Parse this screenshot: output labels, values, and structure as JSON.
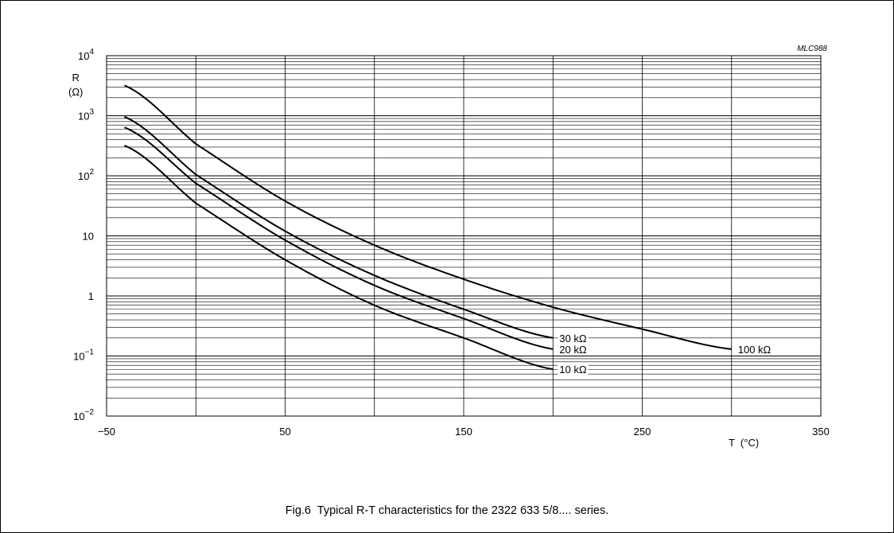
{
  "figure_id": "MLC988",
  "caption": "Fig.6  Typical R-T characteristics for the 2322 633 5/8.... series.",
  "chart_data": {
    "type": "line",
    "title": "",
    "xlabel": "T  (°C)",
    "ylabel": "R (Ω)",
    "xlim": [
      -50,
      350
    ],
    "ylim": [
      0.01,
      10000
    ],
    "yscale": "log",
    "grid": true,
    "x_ticks": [
      "−50",
      "50",
      "150",
      "250",
      "350"
    ],
    "y_ticks": [
      "10^−2",
      "10^−1",
      "1",
      "10",
      "10^2",
      "10^3",
      "10^4"
    ],
    "series": [
      {
        "name": "10 kΩ",
        "x": [
          -40,
          0,
          50,
          100,
          150,
          200
        ],
        "y": [
          320,
          35,
          4,
          0.7,
          0.2,
          0.06
        ]
      },
      {
        "name": "20 kΩ",
        "x": [
          -40,
          0,
          50,
          100,
          150,
          200
        ],
        "y": [
          640,
          75,
          8.5,
          1.5,
          0.42,
          0.13
        ]
      },
      {
        "name": "30 kΩ",
        "x": [
          -40,
          0,
          50,
          100,
          150,
          200
        ],
        "y": [
          960,
          105,
          12,
          2.2,
          0.6,
          0.2
        ]
      },
      {
        "name": "100 kΩ",
        "x": [
          -40,
          0,
          50,
          100,
          150,
          200,
          250,
          300
        ],
        "y": [
          3200,
          340,
          38,
          7,
          1.9,
          0.65,
          0.28,
          0.13
        ]
      }
    ]
  }
}
